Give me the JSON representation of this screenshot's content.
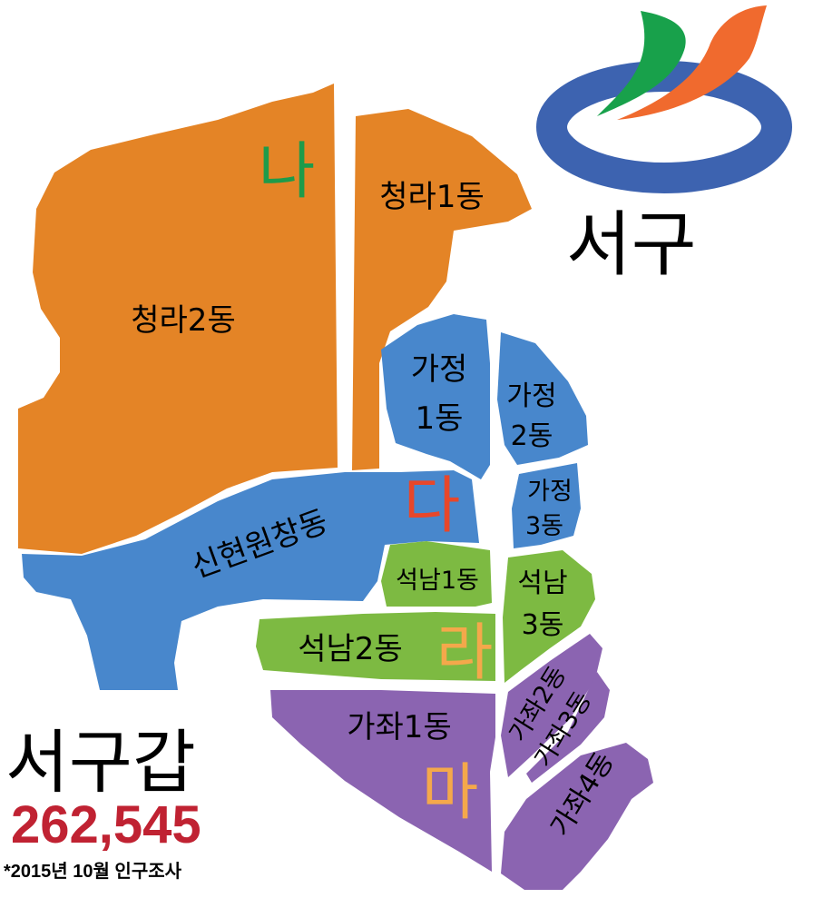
{
  "district": {
    "name": "서구",
    "constituency": "서구갑",
    "population": "262,545",
    "footnote": "*2015년 10월 인구조사"
  },
  "colors": {
    "orange": "#E48426",
    "blue": "#4887CC",
    "green": "#7DBA42",
    "purple": "#8B64B1",
    "letter_na": "#1E9B4A",
    "letter_da": "#E8472A",
    "letter_ra": "#F4A84B",
    "letter_ma": "#F4A84B",
    "population": "#C02232",
    "logo_blue": "#3D63B0",
    "logo_green": "#18A14B",
    "logo_orange": "#F06A2E"
  },
  "groups": {
    "na": "나",
    "da": "다",
    "ra": "라",
    "ma": "마"
  },
  "regions": {
    "cheongra1": {
      "label": "청라1동",
      "group": "na"
    },
    "cheongra2": {
      "label": "청라2동",
      "group": "na"
    },
    "gajeong1": {
      "label_line1": "가정",
      "label_line2": "1동",
      "group": "da"
    },
    "gajeong2": {
      "label_line1": "가정",
      "label_line2": "2동",
      "group": "da"
    },
    "gajeong3": {
      "label_line1": "가정",
      "label_line2": "3동",
      "group": "da"
    },
    "sinhyeon": {
      "label": "신현원창동",
      "group": "da"
    },
    "seoknam1": {
      "label": "석남1동",
      "group": "ra"
    },
    "seoknam2": {
      "label": "석남2동",
      "group": "ra"
    },
    "seoknam3": {
      "label_line1": "석남",
      "label_line2": "3동",
      "group": "ra"
    },
    "gajwa1": {
      "label": "가좌1동",
      "group": "ma"
    },
    "gajwa2": {
      "label": "가좌2동",
      "group": "ma"
    },
    "gajwa3": {
      "label": "가좌3동",
      "group": "ma"
    },
    "gajwa4": {
      "label": "가좌4동",
      "group": "ma"
    }
  }
}
